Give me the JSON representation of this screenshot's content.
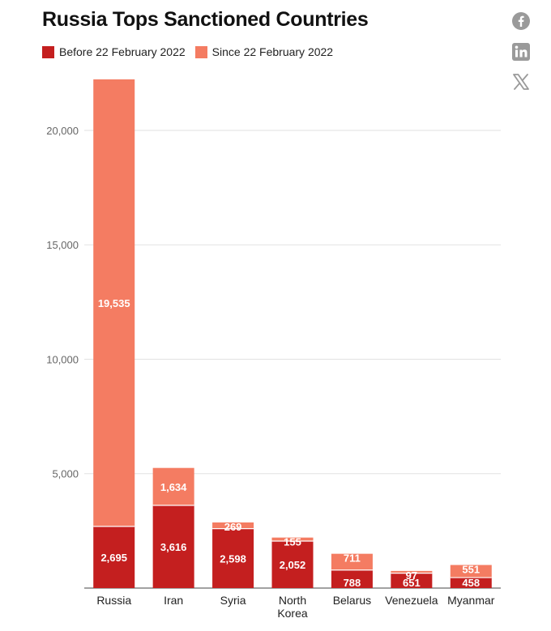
{
  "header": {
    "title": "Russia Tops Sanctioned Countries"
  },
  "legend": {
    "before_label": "Before 22 February 2022",
    "since_label": "Since 22 February 2022"
  },
  "social": [
    {
      "icon": "facebook-icon"
    },
    {
      "icon": "linkedin-icon"
    },
    {
      "icon": "x-icon"
    }
  ],
  "colors": {
    "before": "#c41f1f",
    "since": "#f47c62",
    "icon": "#9a9a9a"
  },
  "chart_data": {
    "type": "bar",
    "stacked": true,
    "title": "Russia Tops Sanctioned Countries",
    "xlabel": "",
    "ylabel": "",
    "ylim": [
      0,
      22230
    ],
    "yticks": [
      5000,
      10000,
      15000,
      20000
    ],
    "ytick_labels": [
      "5,000",
      "10,000",
      "15,000",
      "20,000"
    ],
    "grid": true,
    "legend_position": "top-left",
    "categories": [
      "Russia",
      "Iran",
      "Syria",
      "North Korea",
      "Belarus",
      "Venezuela",
      "Myanmar"
    ],
    "category_lines": [
      [
        "Russia"
      ],
      [
        "Iran"
      ],
      [
        "Syria"
      ],
      [
        "North",
        "Korea"
      ],
      [
        "Belarus"
      ],
      [
        "Venezuela"
      ],
      [
        "Myanmar"
      ]
    ],
    "series": [
      {
        "name": "Before 22 February 2022",
        "values": [
          2695,
          3616,
          2598,
          2052,
          788,
          651,
          458
        ],
        "labels": [
          "2,695",
          "3,616",
          "2,598",
          "2,052",
          "788",
          "651",
          "458"
        ]
      },
      {
        "name": "Since 22 February 2022",
        "values": [
          19535,
          1634,
          269,
          155,
          711,
          97,
          551
        ],
        "labels": [
          "19,535",
          "1,634",
          "269",
          "155",
          "711",
          "97",
          "551"
        ]
      }
    ]
  }
}
